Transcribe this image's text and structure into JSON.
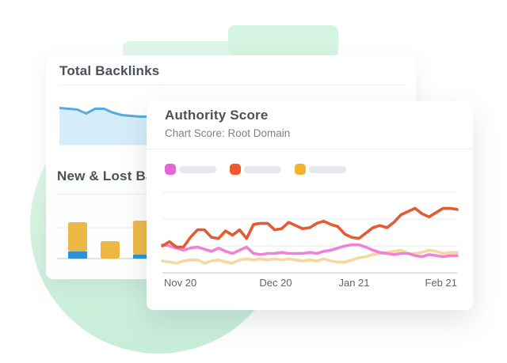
{
  "backlinks_card": {
    "title": "Total Backlinks",
    "section2_title": "New & Lost Ba"
  },
  "authority_card": {
    "title": "Authority Score",
    "subtitle": "Chart Score: Root Domain",
    "legend": [
      {
        "name": "series-pink",
        "swatch_color": "#e564da"
      },
      {
        "name": "series-orange",
        "swatch_color": "#ee5a2b"
      },
      {
        "name": "series-yellow",
        "swatch_color": "#f0b42f"
      }
    ],
    "x_labels": [
      "Nov 20",
      "Dec 20",
      "Jan 21",
      "Feb 21"
    ]
  },
  "colors": {
    "decor_green_light": "#f0faf4",
    "decor_green": "#c7edd9",
    "line_orange": "#e25c33",
    "line_pink": "#ee82d9",
    "line_yellow": "#f5d7a0",
    "area_line_blue": "#57abde",
    "area_fill_blue": "#d5ecf9",
    "bar_yellow": "#ecb845",
    "bar_blue": "#2d92d6",
    "grid_line": "#e9ebee",
    "axis_line": "#d7dbdf",
    "divider": "#ebedf0",
    "legend_pill": "#e7e7ee",
    "title_text": "#4b5158",
    "subtitle_text": "#7b8289",
    "axis_text": "#5d646b"
  },
  "chart_data": [
    {
      "id": "authority_score",
      "type": "line",
      "title": "Authority Score",
      "subtitle": "Chart Score: Root Domain",
      "x_labels": [
        "Nov 20",
        "Dec 20",
        "Jan 21",
        "Feb 21"
      ],
      "x_note": "43 evenly spaced points, Nov 20 through Feb 21",
      "ylim": [
        0,
        80
      ],
      "grid_values": [
        0,
        25,
        50,
        75
      ],
      "grid": "horizontal",
      "legend_position": "top",
      "legend_note": "legend labels shown as blank placeholder pills",
      "series": [
        {
          "name": "orange",
          "color": "#e25c33",
          "values": [
            25,
            29,
            24,
            24,
            33,
            40,
            40,
            33,
            32,
            39,
            35,
            40,
            32,
            45,
            46,
            46,
            40,
            41,
            47,
            44,
            41,
            42,
            46,
            48,
            45,
            43,
            36,
            33,
            32,
            37,
            42,
            44,
            42,
            47,
            54,
            57,
            60,
            55,
            52,
            56,
            60,
            60,
            59
          ]
        },
        {
          "name": "pink",
          "color": "#ee82d9",
          "values": [
            26,
            25,
            23,
            21,
            23,
            24,
            22,
            20,
            23,
            20,
            18,
            21,
            24,
            18,
            17,
            18,
            18,
            19,
            18,
            18,
            18,
            19,
            18,
            20,
            21,
            23,
            25,
            26,
            26,
            24,
            21,
            19,
            18,
            17,
            18,
            18,
            16,
            15,
            17,
            16,
            15,
            16,
            16
          ]
        },
        {
          "name": "yellow",
          "color": "#f5d7a0",
          "values": [
            11,
            10,
            9,
            11,
            12,
            12,
            9,
            11,
            12,
            10,
            9,
            12,
            13,
            12,
            13,
            12,
            13,
            12,
            13,
            12,
            11,
            12,
            11,
            13,
            11,
            10,
            10,
            12,
            14,
            15,
            17,
            18,
            19,
            20,
            21,
            18,
            18,
            19,
            21,
            20,
            18,
            19,
            19
          ]
        }
      ]
    },
    {
      "id": "total_backlinks",
      "type": "area",
      "title": "Total Backlinks",
      "axis_note": "axes unlabeled; right portion hidden behind Authority Score card",
      "line_color": "#57abde",
      "fill_color": "#d5ecf9",
      "values": [
        47,
        46,
        45,
        40,
        46,
        46,
        41,
        38,
        37,
        36,
        36,
        33,
        31,
        30,
        29,
        28,
        28,
        27,
        27,
        26,
        26,
        26,
        25,
        25,
        25,
        24,
        24,
        24,
        24,
        23,
        23,
        23,
        23,
        22,
        22,
        22,
        22,
        22,
        21,
        21
      ]
    },
    {
      "id": "new_lost_backlinks",
      "type": "bar",
      "stacked": true,
      "title": "New & Lost Ba",
      "categories": [
        "bar-1",
        "bar-2",
        "bar-3"
      ],
      "axis_note": "axes unlabeled; values in relative units, third bar partly hidden",
      "series": [
        {
          "name": "lost",
          "color": "#2d92d6",
          "values": [
            9,
            0,
            5
          ]
        },
        {
          "name": "new",
          "color": "#ecb845",
          "values": [
            37,
            22,
            43
          ]
        }
      ]
    }
  ]
}
